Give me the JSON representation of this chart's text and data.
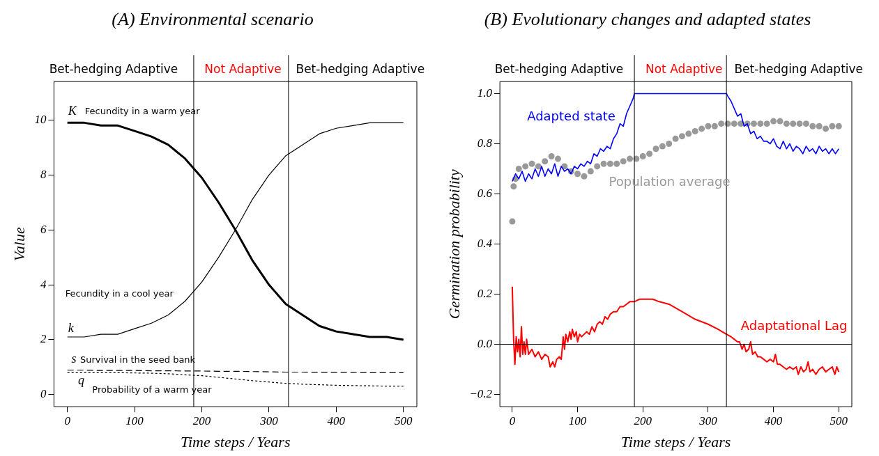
{
  "chart_data": [
    {
      "type": "line",
      "title": "(A) Environmental scenario",
      "xlabel": "Time steps / Years",
      "ylabel": "Value",
      "xlim": [
        -20,
        520
      ],
      "ylim": [
        -0.44,
        11.4
      ],
      "xticks": [
        0,
        100,
        200,
        300,
        400,
        500
      ],
      "yticks": [
        0,
        2,
        4,
        6,
        8,
        10
      ],
      "grid": false,
      "legend": false,
      "marker": "none",
      "x": [
        0,
        25,
        50,
        75,
        100,
        125,
        150,
        175,
        200,
        225,
        250,
        275,
        300,
        325,
        350,
        375,
        400,
        425,
        450,
        475,
        500
      ],
      "series": [
        {
          "color": "#000000",
          "line_style": "solid",
          "values": [
            9.9,
            9.9,
            9.8,
            9.8,
            9.6,
            9.4,
            9.1,
            8.6,
            7.9,
            7.0,
            6.0,
            4.9,
            4.0,
            3.3,
            2.9,
            2.5,
            2.3,
            2.2,
            2.1,
            2.1,
            2.0
          ]
        },
        {
          "color": "#000000",
          "line_style": "solid",
          "values": [
            2.1,
            2.1,
            2.2,
            2.2,
            2.4,
            2.6,
            2.9,
            3.4,
            4.1,
            5.0,
            6.0,
            7.1,
            8.0,
            8.7,
            9.1,
            9.5,
            9.7,
            9.8,
            9.9,
            9.9,
            9.9
          ]
        },
        {
          "color": "#000000",
          "line_style": "dashed",
          "values": [
            0.89,
            0.89,
            0.88,
            0.88,
            0.88,
            0.87,
            0.87,
            0.86,
            0.86,
            0.85,
            0.85,
            0.84,
            0.83,
            0.82,
            0.82,
            0.81,
            0.81,
            0.81,
            0.8,
            0.8,
            0.8
          ]
        },
        {
          "color": "#000000",
          "line_style": "dotted",
          "values": [
            0.8,
            0.8,
            0.8,
            0.8,
            0.79,
            0.78,
            0.76,
            0.72,
            0.69,
            0.63,
            0.57,
            0.51,
            0.46,
            0.41,
            0.38,
            0.36,
            0.34,
            0.33,
            0.32,
            0.31,
            0.31
          ]
        }
      ],
      "ref_lines": [
        {
          "axis": "x",
          "value": 188
        },
        {
          "axis": "x",
          "value": 329
        }
      ],
      "annotations": [
        "Bet-hedging Adaptive",
        "Not Adaptive",
        "Bet-hedging Adaptive",
        "K",
        "Fecundity in a warm year",
        "Fecundity in a cool year",
        "k",
        "s",
        "Survival in the seed bank",
        "q",
        "Probability of a warm year"
      ]
    },
    {
      "type": "line",
      "title": "(B) Evolutionary changes and adapted states",
      "xlabel": "Time steps / Years",
      "ylabel": "Germination probability",
      "xlim": [
        -19,
        520
      ],
      "ylim": [
        -0.249,
        1.048
      ],
      "xticks": [
        0,
        100,
        200,
        300,
        400,
        500
      ],
      "yticks": [
        {
          "value": -0.2,
          "label": "−0.2"
        },
        {
          "value": 0,
          "label": "0.0"
        },
        {
          "value": 0.2,
          "label": "0.2"
        },
        {
          "value": 0.4,
          "label": "0.4"
        },
        {
          "value": 0.6,
          "label": "0.6"
        },
        {
          "value": 0.8,
          "label": "0.8"
        },
        {
          "value": 1,
          "label": "1.0"
        }
      ],
      "grid": false,
      "legend": false,
      "marker": "none",
      "series": [
        {
          "name": "Adapted state",
          "type": "line",
          "color": "#0000ff",
          "x": [
            0,
            5,
            10,
            15,
            20,
            25,
            30,
            35,
            40,
            45,
            50,
            55,
            60,
            65,
            70,
            75,
            80,
            85,
            90,
            95,
            100,
            105,
            110,
            115,
            120,
            125,
            130,
            135,
            140,
            145,
            150,
            155,
            160,
            165,
            170,
            175,
            180,
            185,
            187,
            328,
            330,
            335,
            340,
            345,
            350,
            355,
            360,
            365,
            370,
            375,
            380,
            385,
            390,
            395,
            400,
            405,
            410,
            415,
            420,
            425,
            430,
            435,
            440,
            445,
            450,
            455,
            460,
            465,
            470,
            475,
            480,
            485,
            490,
            495,
            500
          ],
          "values": [
            0.65,
            0.68,
            0.66,
            0.69,
            0.65,
            0.68,
            0.66,
            0.7,
            0.67,
            0.71,
            0.67,
            0.7,
            0.68,
            0.72,
            0.67,
            0.71,
            0.69,
            0.7,
            0.68,
            0.71,
            0.7,
            0.72,
            0.71,
            0.73,
            0.72,
            0.76,
            0.75,
            0.78,
            0.77,
            0.79,
            0.78,
            0.82,
            0.84,
            0.88,
            0.87,
            0.92,
            0.95,
            0.98,
            1.0,
            1.0,
            0.99,
            0.97,
            0.94,
            0.91,
            0.92,
            0.87,
            0.88,
            0.84,
            0.85,
            0.82,
            0.83,
            0.81,
            0.81,
            0.8,
            0.82,
            0.79,
            0.78,
            0.81,
            0.78,
            0.8,
            0.77,
            0.79,
            0.78,
            0.76,
            0.79,
            0.77,
            0.78,
            0.76,
            0.79,
            0.77,
            0.78,
            0.76,
            0.78,
            0.76,
            0.78
          ]
        },
        {
          "name": "Population average",
          "type": "scatter",
          "marker": "circle",
          "color": "#999999",
          "x": [
            0,
            2,
            5,
            10,
            20,
            30,
            40,
            50,
            60,
            70,
            80,
            90,
            100,
            110,
            120,
            130,
            140,
            150,
            160,
            170,
            180,
            190,
            200,
            210,
            220,
            230,
            240,
            250,
            260,
            270,
            280,
            290,
            300,
            310,
            320,
            330,
            340,
            350,
            360,
            370,
            380,
            390,
            400,
            410,
            420,
            430,
            440,
            450,
            460,
            470,
            480,
            490,
            500
          ],
          "values": [
            0.49,
            0.63,
            0.66,
            0.7,
            0.71,
            0.72,
            0.71,
            0.73,
            0.75,
            0.74,
            0.71,
            0.69,
            0.68,
            0.67,
            0.69,
            0.71,
            0.72,
            0.72,
            0.72,
            0.73,
            0.74,
            0.74,
            0.75,
            0.76,
            0.78,
            0.79,
            0.8,
            0.82,
            0.83,
            0.84,
            0.85,
            0.86,
            0.87,
            0.87,
            0.88,
            0.88,
            0.88,
            0.88,
            0.88,
            0.88,
            0.88,
            0.88,
            0.89,
            0.89,
            0.88,
            0.88,
            0.88,
            0.88,
            0.87,
            0.87,
            0.86,
            0.87,
            0.87
          ]
        },
        {
          "name": "Adaptational Lag",
          "type": "line",
          "color": "#ff0000",
          "x": [
            0,
            2,
            4,
            6,
            8,
            10,
            12,
            14,
            16,
            18,
            20,
            22,
            25,
            30,
            35,
            40,
            45,
            50,
            55,
            58,
            62,
            65,
            68,
            72,
            75,
            78,
            80,
            82,
            85,
            88,
            90,
            92,
            95,
            98,
            100,
            103,
            106,
            110,
            114,
            118,
            122,
            126,
            130,
            134,
            138,
            142,
            146,
            150,
            155,
            160,
            165,
            170,
            175,
            180,
            187,
            195,
            205,
            215,
            225,
            240,
            260,
            280,
            300,
            315,
            328,
            335,
            340,
            345,
            348,
            352,
            355,
            358,
            362,
            365,
            368,
            372,
            376,
            380,
            385,
            390,
            395,
            400,
            403,
            406,
            410,
            415,
            420,
            425,
            430,
            435,
            438,
            442,
            446,
            450,
            453,
            456,
            460,
            465,
            470,
            475,
            480,
            485,
            490,
            494,
            497,
            500
          ],
          "values": [
            0.23,
            0.02,
            -0.08,
            0.03,
            -0.03,
            0.02,
            -0.05,
            0.07,
            -0.04,
            0.01,
            -0.04,
            0.02,
            -0.04,
            -0.02,
            -0.05,
            -0.03,
            -0.06,
            -0.04,
            -0.05,
            -0.09,
            -0.07,
            -0.09,
            -0.06,
            -0.05,
            -0.06,
            0.03,
            -0.02,
            0.04,
            0.01,
            0.05,
            0.02,
            0.06,
            0.03,
            0.05,
            0.01,
            0.04,
            0.03,
            0.04,
            0.05,
            0.04,
            0.07,
            0.05,
            0.08,
            0.09,
            0.08,
            0.11,
            0.1,
            0.12,
            0.13,
            0.13,
            0.15,
            0.15,
            0.16,
            0.17,
            0.17,
            0.18,
            0.18,
            0.18,
            0.17,
            0.16,
            0.13,
            0.1,
            0.08,
            0.06,
            0.04,
            0.03,
            0.02,
            0.01,
            0.01,
            -0.02,
            0.0,
            -0.03,
            -0.02,
            0.01,
            -0.04,
            -0.03,
            -0.05,
            -0.05,
            -0.06,
            -0.07,
            -0.06,
            -0.07,
            -0.04,
            -0.08,
            -0.08,
            -0.09,
            -0.1,
            -0.09,
            -0.1,
            -0.09,
            -0.12,
            -0.09,
            -0.11,
            -0.1,
            -0.07,
            -0.11,
            -0.1,
            -0.12,
            -0.1,
            -0.09,
            -0.11,
            -0.1,
            -0.09,
            -0.12,
            -0.09,
            -0.11
          ]
        }
      ],
      "ref_lines": [
        {
          "axis": "y",
          "value": 0
        },
        {
          "axis": "x",
          "value": 187
        },
        {
          "axis": "x",
          "value": 328
        }
      ],
      "annotations": [
        "Bet-hedging Adaptive",
        "Not Adaptive",
        "Bet-hedging Adaptive"
      ]
    }
  ]
}
